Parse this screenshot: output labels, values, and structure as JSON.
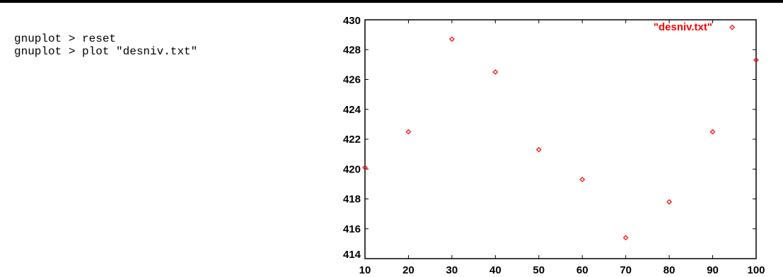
{
  "console": {
    "lines": [
      "gnuplot > reset",
      "gnuplot > plot \"desniv.txt\""
    ]
  },
  "chart_data": {
    "type": "scatter",
    "title": "",
    "xlabel": "",
    "ylabel": "",
    "xlim": [
      10,
      100
    ],
    "ylim": [
      414,
      430
    ],
    "xticks": [
      10,
      20,
      30,
      40,
      50,
      60,
      70,
      80,
      90,
      100
    ],
    "yticks": [
      414,
      416,
      418,
      420,
      422,
      424,
      426,
      428,
      430
    ],
    "grid": false,
    "legend_position": "top-right",
    "series": [
      {
        "name": "\"desniv.txt\"",
        "color": "#ff0000",
        "marker": "diamond",
        "x": [
          10,
          20,
          30,
          40,
          50,
          60,
          70,
          80,
          90,
          94.5,
          100
        ],
        "y": [
          420.1,
          422.5,
          428.7,
          426.5,
          421.3,
          419.3,
          415.4,
          417.8,
          422.5,
          429.5,
          427.3
        ]
      }
    ]
  }
}
